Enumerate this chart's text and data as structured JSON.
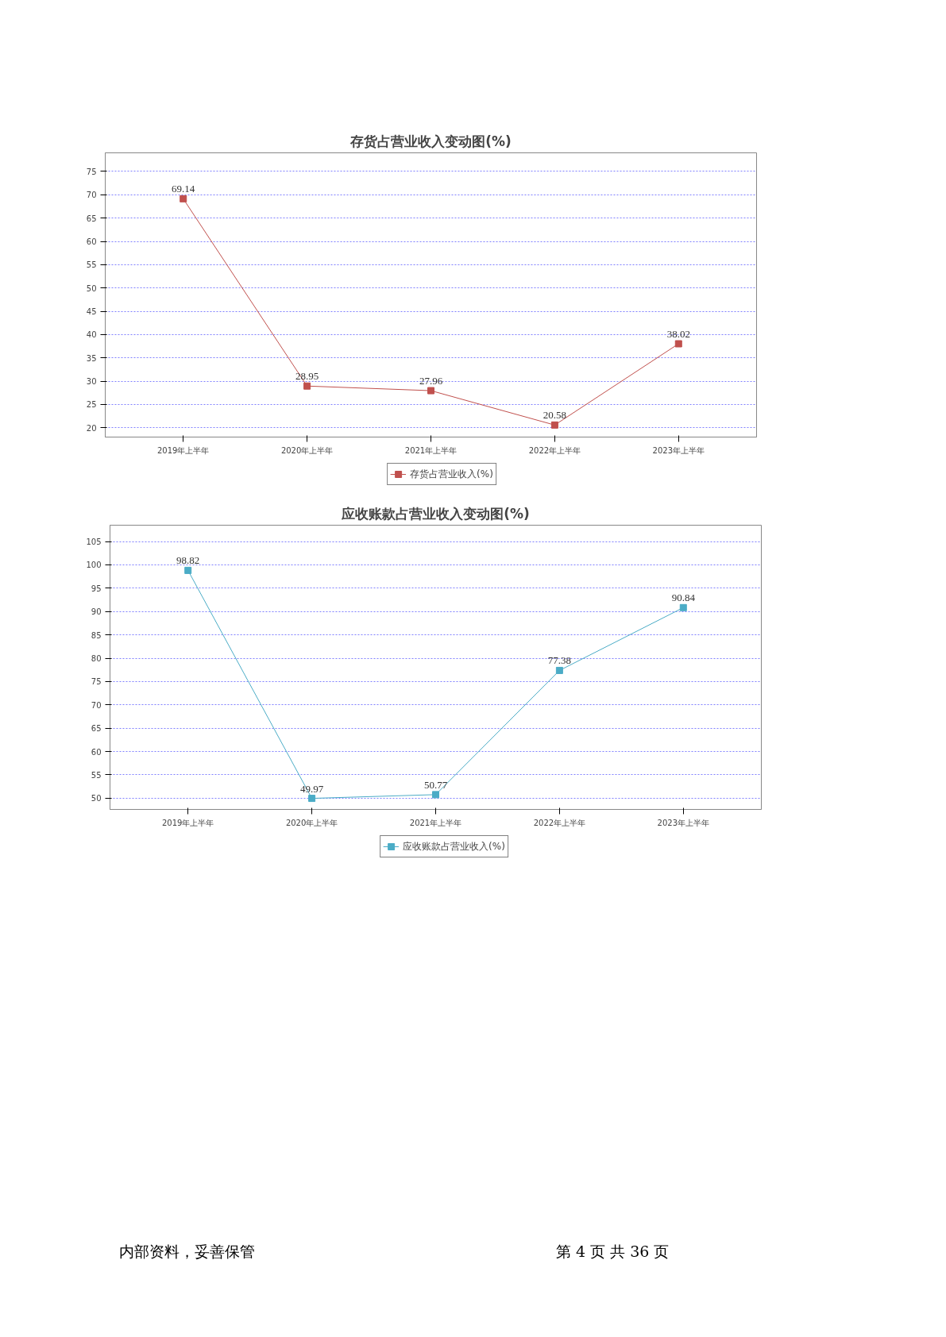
{
  "chart_data": [
    {
      "type": "line",
      "title": "存货占营业收入变动图(%)",
      "categories": [
        "2019年上半年",
        "2020年上半年",
        "2021年上半年",
        "2022年上半年",
        "2023年上半年"
      ],
      "series": [
        {
          "name": "存货占营业收入(%)",
          "color": "#c0504d",
          "values": [
            69.14,
            28.95,
            27.96,
            20.58,
            38.02
          ]
        }
      ],
      "ylim": [
        18,
        79
      ],
      "yticks": [
        20,
        25,
        30,
        35,
        40,
        45,
        50,
        55,
        60,
        65,
        70,
        75
      ],
      "grid": "y",
      "legend": "bottom",
      "marker": "square",
      "line_style": "solid",
      "data_labels": true
    },
    {
      "type": "line",
      "title": "应收账款占营业收入变动图(%)",
      "categories": [
        "2019年上半年",
        "2020年上半年",
        "2021年上半年",
        "2022年上半年",
        "2023年上半年"
      ],
      "series": [
        {
          "name": "应收账款占营业收入(%)",
          "color": "#4bacc6",
          "values": [
            98.82,
            49.97,
            50.77,
            77.38,
            90.84
          ]
        }
      ],
      "ylim": [
        47.6,
        108.5
      ],
      "yticks": [
        50,
        55,
        60,
        65,
        70,
        75,
        80,
        85,
        90,
        95,
        100,
        105
      ],
      "grid": "y",
      "legend": "bottom",
      "marker": "square",
      "line_style": "solid",
      "data_labels": true,
      "annotations": [
        "内部资料，妥善保管",
        "第 4 页  共 36 页"
      ]
    }
  ]
}
